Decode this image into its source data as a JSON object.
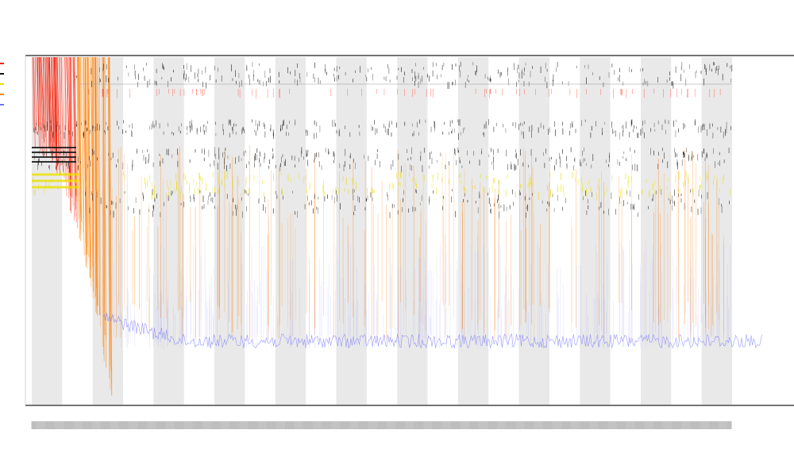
{
  "chart_data": {
    "type": "line",
    "title": "",
    "subtitle_1": "",
    "subtitle_2": "",
    "xlabel": "",
    "ylabel": "",
    "tick_count": 920,
    "grid": true,
    "legend_position": "left",
    "series": [
      {
        "name": "",
        "color": "#ff1a00"
      },
      {
        "name": "",
        "color": "#111111"
      },
      {
        "name": "",
        "color": "#e8e000"
      },
      {
        "name": "",
        "color": "#ff8a1a"
      },
      {
        "name": "",
        "color": "#7070ff"
      }
    ],
    "colors": {
      "band": "#e9e9e9",
      "axis": "#222222",
      "background": "#ffffff"
    }
  }
}
